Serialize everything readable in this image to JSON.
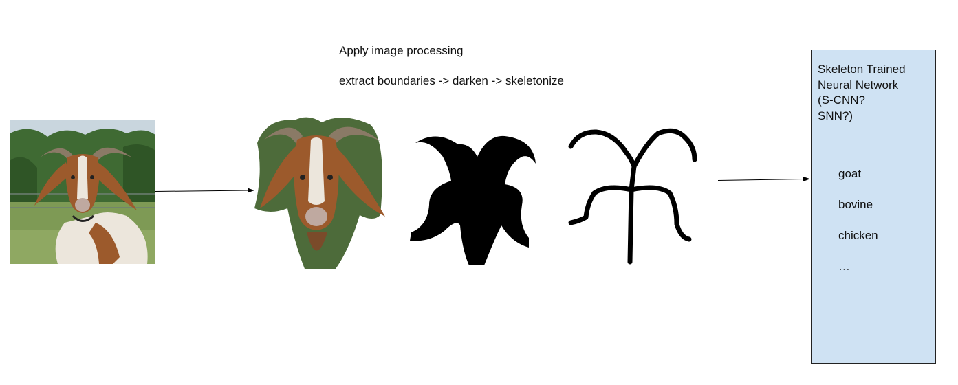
{
  "captions": {
    "step": "Apply image processing",
    "pipeline": "extract boundaries -> darken -> skeletonize"
  },
  "network": {
    "title": "Skeleton Trained\nNeural Network\n(S-CNN?\n SNN?)",
    "labels": [
      "goat",
      "bovine",
      "chicken",
      "…"
    ]
  },
  "colors": {
    "box_fill": "#cfe2f3",
    "box_border": "#222222",
    "silhouette": "#000000",
    "goat_brown": "#9c5a2c",
    "goat_white": "#ece6dc",
    "horn": "#8a7a66",
    "sky": "#c9d6de",
    "trees": "#3f6a33",
    "grass": "#7e9a55"
  },
  "icons": [
    "goat-photo-image",
    "goat-cutout-image",
    "goat-silhouette-image",
    "goat-skeleton-image"
  ]
}
